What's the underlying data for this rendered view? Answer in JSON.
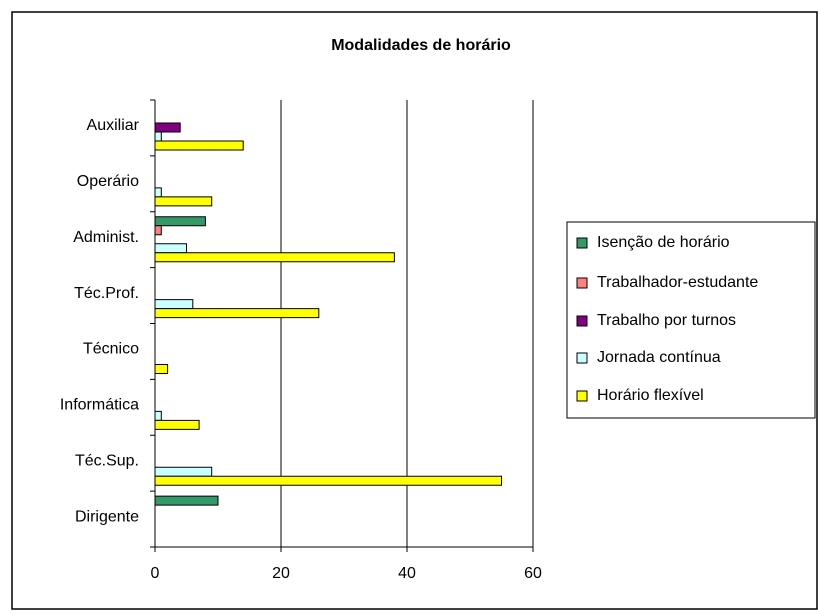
{
  "chart_data": {
    "type": "hbar",
    "title": "Modalidades de horário",
    "categories": [
      "Auxiliar",
      "Operário",
      "Administ.",
      "Téc.Prof.",
      "Técnico",
      "Informática",
      "Téc.Sup.",
      "Dirigente"
    ],
    "series": [
      {
        "name": "Isenção de horário",
        "color": "#339966",
        "values": [
          0,
          0,
          8,
          0,
          0,
          0,
          0,
          10
        ]
      },
      {
        "name": "Trabalhador-estudante",
        "color": "#ff8080",
        "values": [
          0,
          0,
          1,
          0,
          0,
          0,
          0,
          0
        ]
      },
      {
        "name": "Trabalho por turnos",
        "color": "#800080",
        "values": [
          4,
          0,
          0,
          0,
          0,
          0,
          0,
          0
        ]
      },
      {
        "name": "Jornada contínua",
        "color": "#ccffff",
        "values": [
          1,
          1,
          5,
          6,
          0,
          1,
          9,
          0
        ]
      },
      {
        "name": "Horário flexível",
        "color": "#ffff00",
        "values": [
          14,
          9,
          38,
          26,
          2,
          7,
          55,
          0
        ]
      }
    ],
    "xlim": [
      0,
      60
    ],
    "xticks": [
      0,
      20,
      40,
      60
    ],
    "grid": true,
    "legend": "right"
  }
}
